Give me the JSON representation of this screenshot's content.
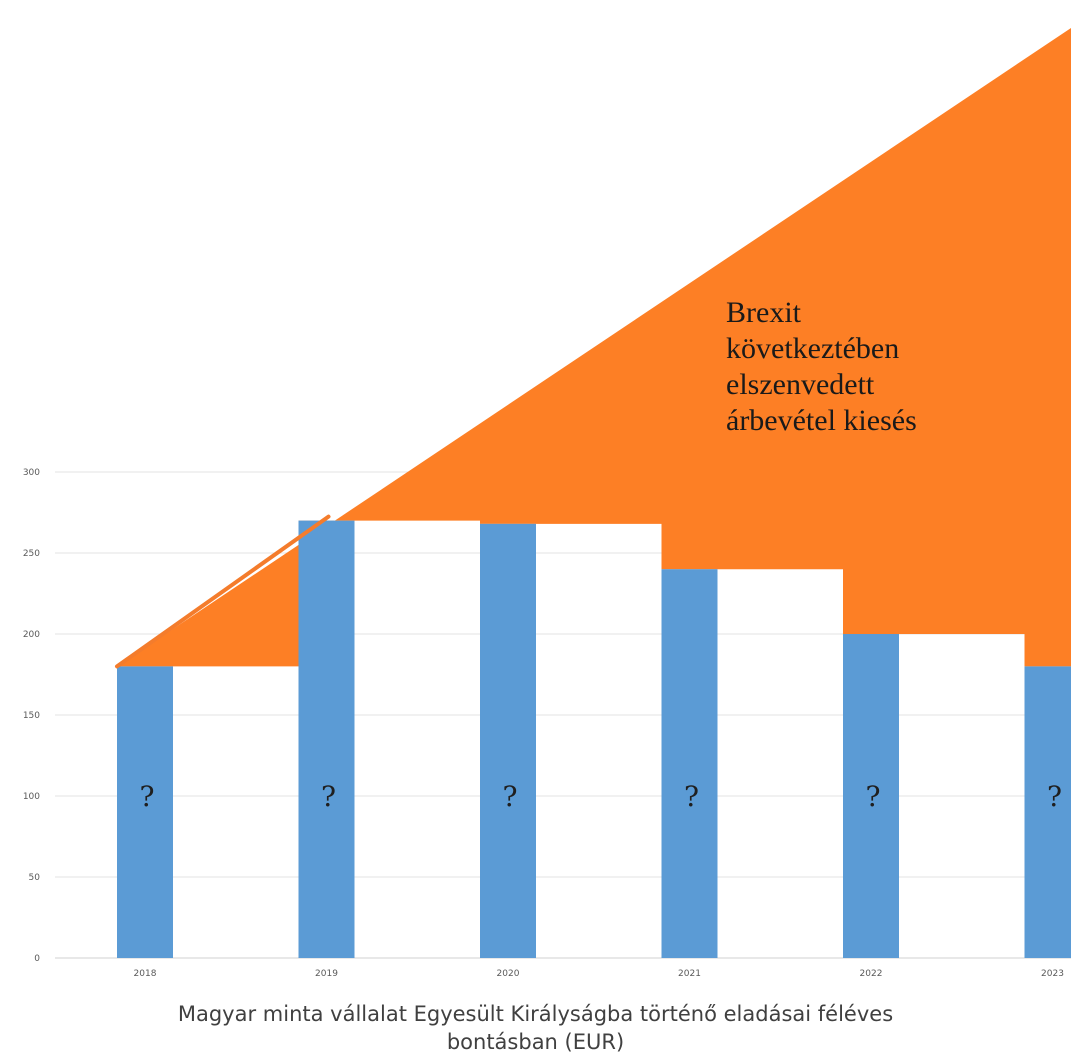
{
  "chart_data": {
    "type": "bar",
    "categories": [
      "2018",
      "2019",
      "2020",
      "2021",
      "2022",
      "2023"
    ],
    "values": [
      180,
      270,
      268,
      240,
      200,
      180
    ],
    "bar_labels": [
      "?",
      "?",
      "?",
      "?",
      "?",
      "?"
    ],
    "ylim": [
      0,
      300
    ],
    "yticks": [
      "0",
      "50",
      "100",
      "150",
      "200",
      "250",
      "300"
    ],
    "grid": true,
    "trend_line": {
      "from_category": "2018",
      "to_category": "2019",
      "values": [
        180,
        270
      ]
    },
    "shaded_area_label_lines": [
      "Brexit",
      "következtében",
      "elszenvedett",
      "árbevétel kiesés"
    ],
    "caption_lines": [
      "Magyar minta vállalat Egyesült Királyságba történő eladásai féléves",
      "bontásban (EUR)"
    ]
  },
  "colors": {
    "bar": "#5b9bd5",
    "shaded_area": "#fd7f25",
    "trend_line": "#f47c2c",
    "grid": "#e3e3e3",
    "axis": "#d0d0d0"
  }
}
